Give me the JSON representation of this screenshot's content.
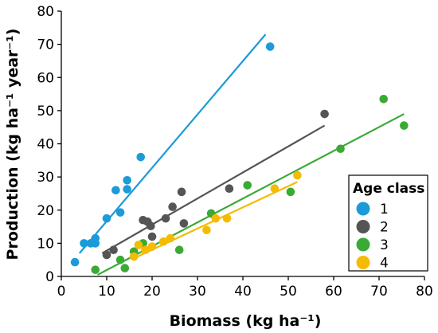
{
  "chart_data": {
    "type": "scatter",
    "xlabel": "Biomass (kg ha⁻¹)",
    "ylabel": "Production (kg ha⁻¹ year⁻¹)",
    "xlim": [
      0,
      80
    ],
    "ylim": [
      0,
      80
    ],
    "xticks": [
      0,
      10,
      20,
      30,
      40,
      50,
      60,
      70,
      80
    ],
    "yticks": [
      0,
      10,
      20,
      30,
      40,
      50,
      60,
      70,
      80
    ],
    "grid": false,
    "legend": {
      "title": "Age class",
      "placement": "right"
    },
    "series": [
      {
        "name": "1",
        "color": "#1b9bd7",
        "points": [
          [
            3,
            4.3
          ],
          [
            5,
            10
          ],
          [
            6.5,
            10
          ],
          [
            7.5,
            10
          ],
          [
            7.5,
            11.5
          ],
          [
            10,
            17.5
          ],
          [
            12,
            26
          ],
          [
            13,
            19.3
          ],
          [
            14.5,
            26.3
          ],
          [
            14.5,
            29
          ],
          [
            17.5,
            36
          ],
          [
            46,
            69.3
          ]
        ],
        "fit": [
          [
            4,
            7
          ],
          [
            45,
            73
          ]
        ]
      },
      {
        "name": "2",
        "color": "#555555",
        "points": [
          [
            10,
            6.5
          ],
          [
            11.5,
            8
          ],
          [
            18,
            17
          ],
          [
            19,
            16.5
          ],
          [
            19.7,
            15.2
          ],
          [
            20,
            12
          ],
          [
            23,
            17.5
          ],
          [
            24.5,
            21
          ],
          [
            26.5,
            25.5
          ],
          [
            27,
            16
          ],
          [
            37,
            26.5
          ],
          [
            58,
            49
          ]
        ],
        "fit": [
          [
            9,
            7
          ],
          [
            58,
            45.5
          ]
        ]
      },
      {
        "name": "3",
        "color": "#3aaa35",
        "points": [
          [
            7.5,
            2
          ],
          [
            13,
            5
          ],
          [
            14,
            2.5
          ],
          [
            16,
            7.5
          ],
          [
            18,
            10
          ],
          [
            26,
            8
          ],
          [
            33,
            19
          ],
          [
            41,
            27.5
          ],
          [
            50.5,
            25.5
          ],
          [
            61.5,
            38.5
          ],
          [
            71,
            53.5
          ],
          [
            75.5,
            45.5
          ]
        ],
        "fit": [
          [
            8,
            0.5
          ],
          [
            75.5,
            49
          ]
        ]
      },
      {
        "name": "4",
        "color": "#f5bb00",
        "points": [
          [
            16,
            6
          ],
          [
            17,
            9.5
          ],
          [
            18.5,
            8
          ],
          [
            20,
            9
          ],
          [
            22.5,
            10.5
          ],
          [
            24,
            11.5
          ],
          [
            32,
            14
          ],
          [
            34,
            17.5
          ],
          [
            36.5,
            17.5
          ],
          [
            47,
            26.5
          ],
          [
            52,
            30.5
          ]
        ],
        "fit": [
          [
            16,
            5.5
          ],
          [
            52,
            28.5
          ]
        ]
      }
    ]
  }
}
